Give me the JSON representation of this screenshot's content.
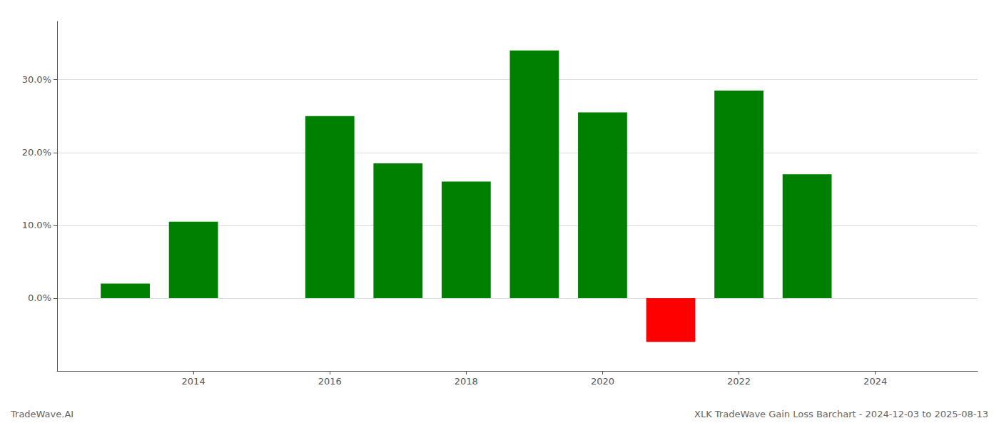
{
  "chart_data": {
    "type": "bar",
    "title": "XLK TradeWave Gain Loss Barchart - 2024-12-03 to 2025-08-13",
    "annotations": [
      "TradeWave.AI"
    ],
    "x": [
      2013,
      2014,
      2016,
      2017,
      2018,
      2019,
      2020,
      2021,
      2022,
      2023
    ],
    "values": [
      2.0,
      10.5,
      25.0,
      18.5,
      16.0,
      34.0,
      25.5,
      -6.0,
      28.5,
      17.0
    ],
    "colors": [
      "#008000",
      "#008000",
      "#008000",
      "#008000",
      "#008000",
      "#008000",
      "#008000",
      "#ff0000",
      "#008000",
      "#008000"
    ],
    "xlim": [
      2012.0,
      2025.5
    ],
    "ylim": [
      -10.0,
      38.0
    ],
    "xticks": [
      2014,
      2016,
      2018,
      2020,
      2022,
      2024
    ],
    "yticks": [
      {
        "value": 0.0,
        "label": "0.0%"
      },
      {
        "value": 10.0,
        "label": "10.0%"
      },
      {
        "value": 20.0,
        "label": "20.0%"
      },
      {
        "value": 30.0,
        "label": "30.0%"
      }
    ],
    "grid": true
  }
}
